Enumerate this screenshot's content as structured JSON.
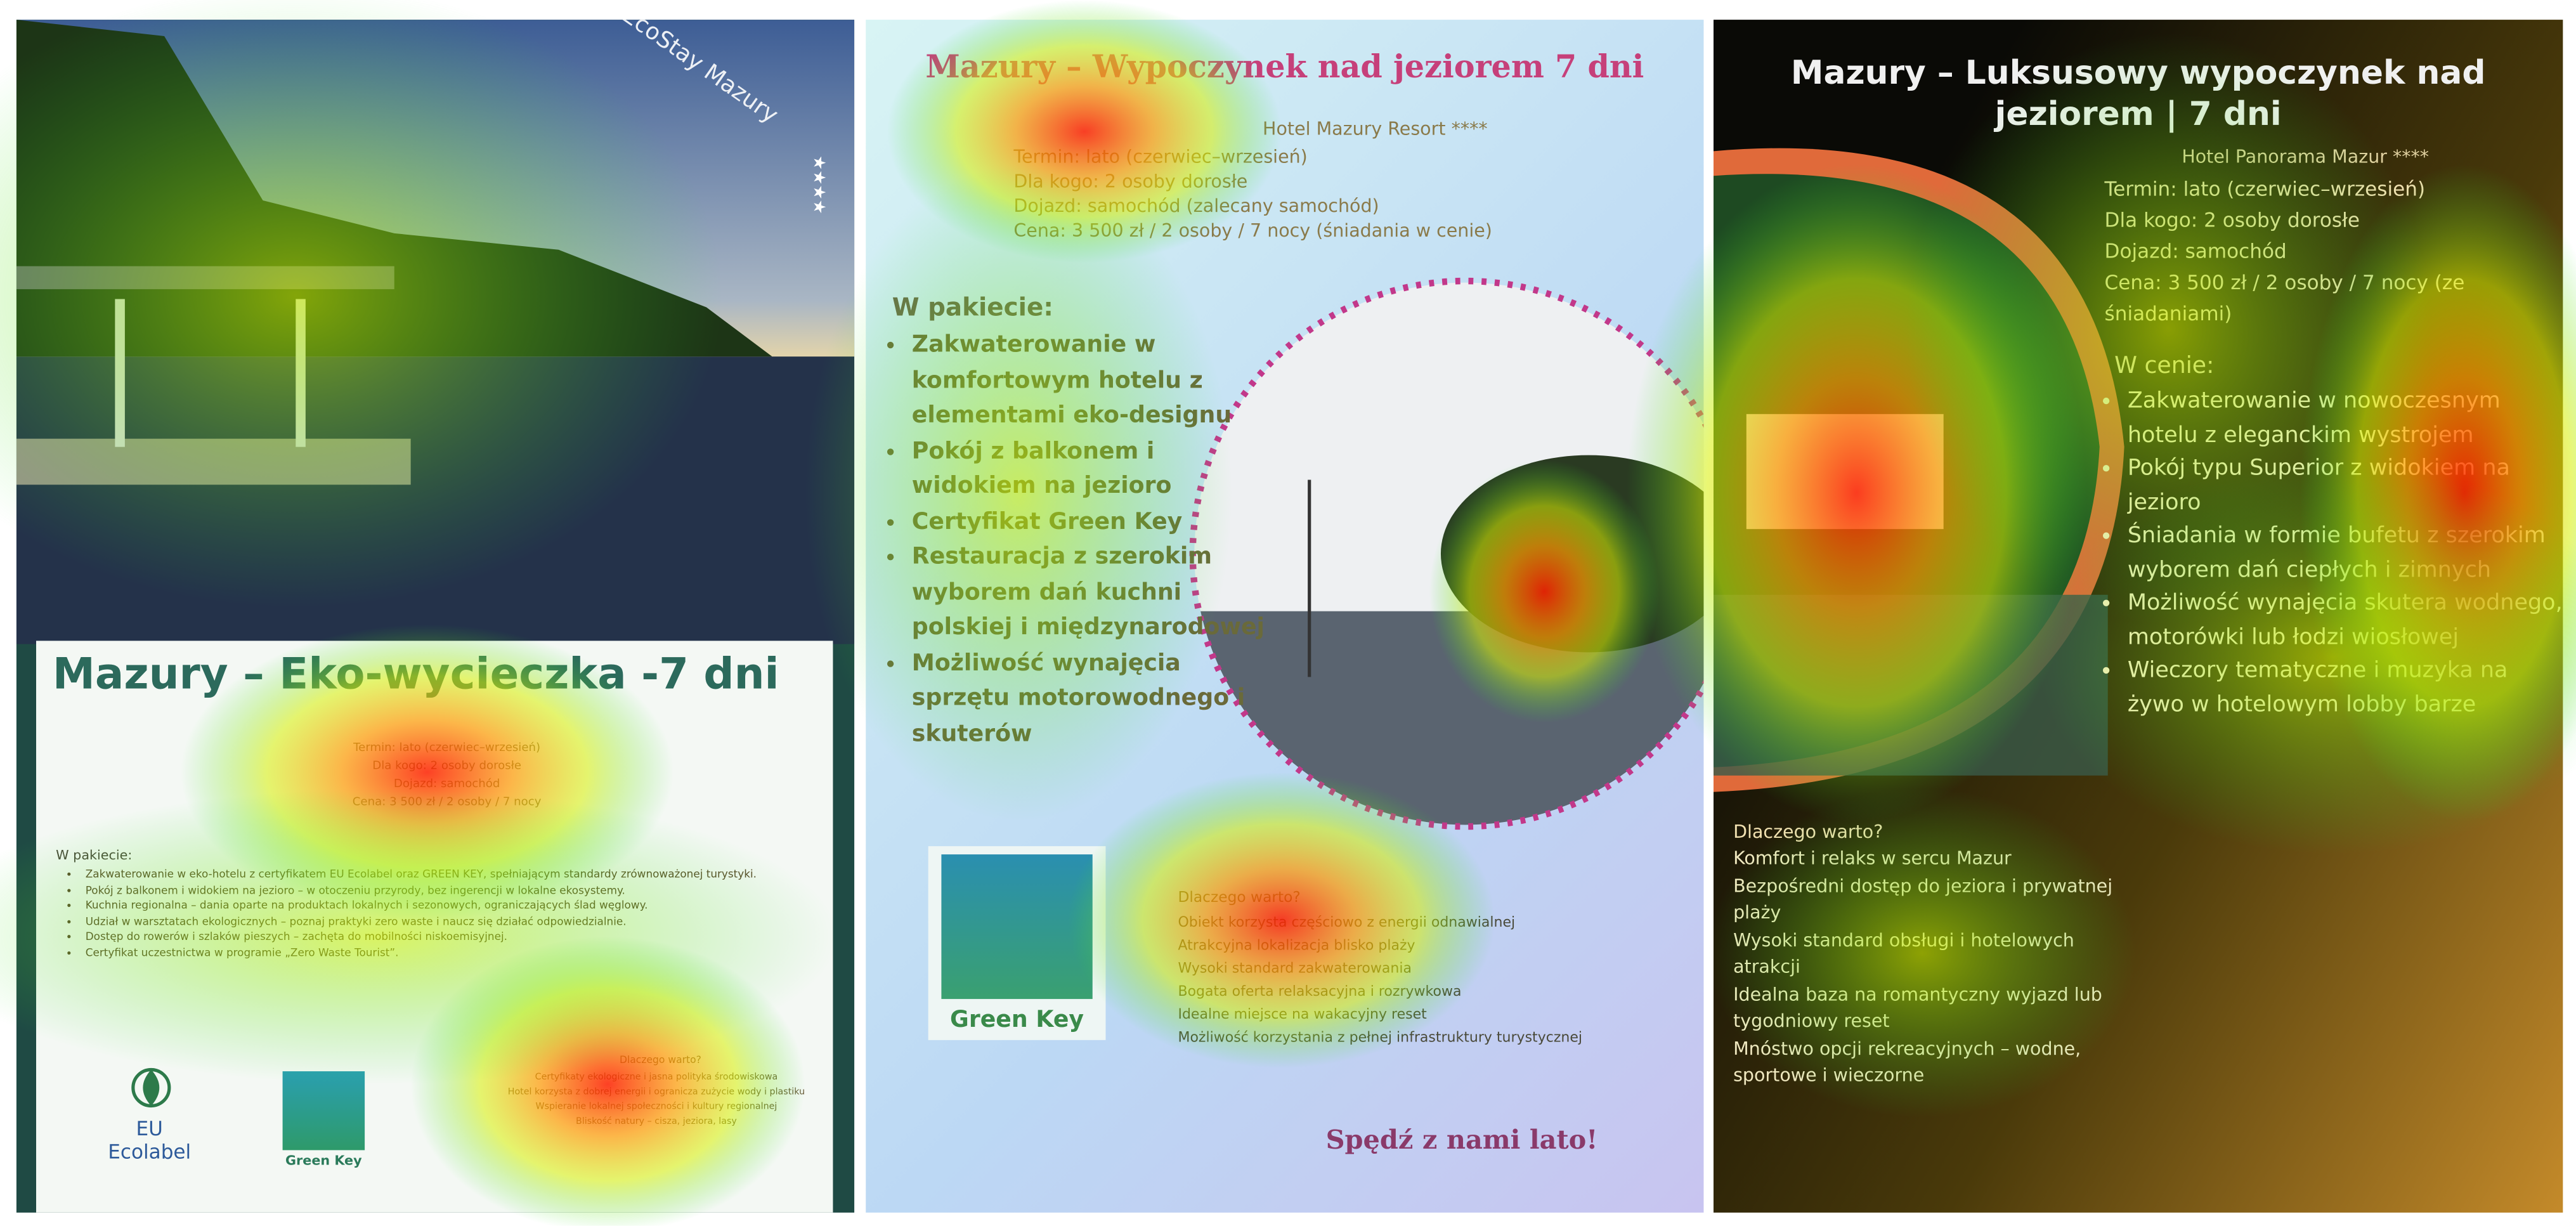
{
  "panels": [
    {
      "badge": "EcoStay Mazury",
      "stars": "★★★★",
      "title": "Mazury – Eko-wycieczka -7 dni",
      "info": [
        "Termin: lato (czerwiec–wrzesień)",
        "Dla kogo: 2 osoby dorosłe",
        "Dojazd: samochód",
        "Cena: 3 500 zł / 2 osoby / 7 nocy"
      ],
      "package_heading": "W pakiecie:",
      "package": [
        "Zakwaterowanie w eko-hotelu z certyfikatem EU Ecolabel oraz GREEN KEY, spełniającym standardy zrównoważonej turystyki.",
        "Pokój z balkonem i widokiem na jezioro – w otoczeniu przyrody, bez ingerencji w lokalne ekosystemy.",
        "Kuchnia regionalna – dania oparte na produktach lokalnych i sezonowych, ograniczających ślad węglowy.",
        "Udział w warsztatach ekologicznych – poznaj praktyki zero waste i naucz się działać odpowiedzialnie.",
        "Dostęp do rowerów i szlaków pieszych – zachęta do mobilności niskoemisyjnej.",
        "Certyfikat uczestnictwa w programie „Zero Waste Tourist”."
      ],
      "logos": [
        "EU Ecolabel",
        "Green Key"
      ],
      "why_heading": "Dlaczego warto?",
      "why": [
        "Certyfikaty ekologiczne i jasna polityka środowiskowa",
        "Hotel korzysta z dobrej energii i ogranicza zużycie wody i plastiku",
        "Wspieranie lokalnej społeczności i kultury regionalnej",
        "Bliskość natury – cisza, jeziora, lasy"
      ]
    },
    {
      "title": "Mazury – Wypoczynek nad jeziorem 7 dni",
      "hotel": "Hotel Mazury Resort ****",
      "info": [
        "Termin: lato (czerwiec–wrzesień)",
        "Dla kogo: 2 osoby dorosłe",
        "Dojazd: samochód (zalecany samochód)",
        "Cena: 3 500 zł / 2 osoby / 7 nocy (śniadania w cenie)"
      ],
      "package_heading": "W pakiecie:",
      "package": [
        "Zakwaterowanie w komfortowym hotelu z elementami eko-designu",
        "Pokój z balkonem i widokiem na jezioro",
        "Certyfikat Green Key",
        "Restauracja z szerokim wyborem dań kuchni polskiej i międzynarodowej",
        "Możliwość wynajęcia sprzętu motorowodnego i skuterów"
      ],
      "logo": "Green Key",
      "why_heading": "Dlaczego warto?",
      "why": [
        "Obiekt korzysta częściowo z energii odnawialnej",
        "Atrakcyjna lokalizacja blisko plaży",
        "Wysoki standard zakwaterowania",
        "Bogata oferta relaksacyjna i rozrywkowa",
        "Idealne miejsce na wakacyjny reset",
        "Możliwość korzystania z pełnej infrastruktury turystycznej"
      ],
      "slogan": "Spędź z nami lato!"
    },
    {
      "title": "Mazury – Luksusowy wypoczynek nad jeziorem | 7 dni",
      "hotel": "Hotel Panorama Mazur ****",
      "info": [
        "Termin: lato (czerwiec–wrzesień)",
        "Dla kogo: 2 osoby dorosłe",
        "Dojazd: samochód",
        "Cena: 3 500 zł / 2 osoby / 7 nocy (ze śniadaniami)"
      ],
      "package_heading": "W cenie:",
      "package": [
        "Zakwaterowanie w nowoczesnym hotelu z eleganckim wystrojem",
        "Pokój typu Superior z widokiem na jezioro",
        "Śniadania w formie bufetu z szerokim wyborem dań ciepłych i zimnych",
        "Możliwość wynajęcia skutera wodnego, motorówki lub łodzi wiosłowej",
        "Wieczory tematyczne i muzyka na żywo w hotelowym lobby barze"
      ],
      "why_heading": "Dlaczego warto?",
      "why": [
        "Komfort i relaks w sercu Mazur",
        "Bezpośredni dostęp do jeziora i prywatnej plaży",
        "Wysoki standard obsługi i hotelowych atrakcji",
        "Idealna baza na romantyczny wyjazd lub tygodniowy reset",
        "Mnóstwo opcji rekreacyjnych – wodne, sportowe i wieczorne"
      ]
    }
  ]
}
